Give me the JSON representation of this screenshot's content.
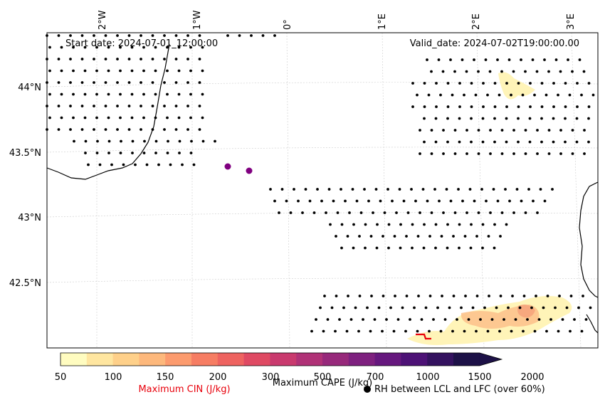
{
  "header": {
    "start_date": "Start date: 2024-07-01_12:00:00",
    "valid_date": "Valid_date: 2024-07-02T19:00:00.00"
  },
  "axes": {
    "lon_labels": [
      "2°W",
      "1°W",
      "0°",
      "1°E",
      "2°E",
      "3°E"
    ],
    "lat_labels": [
      "44°N",
      "43.5°N",
      "43°N",
      "42.5°N"
    ]
  },
  "colorbar": {
    "ticks": [
      "50",
      "100",
      "150",
      "200",
      "300",
      "500",
      "700",
      "1000",
      "1500",
      "2000"
    ],
    "colors": [
      "#fffcc0",
      "#ffe6a0",
      "#fed08a",
      "#fdb87c",
      "#fc9b6e",
      "#f67d63",
      "#ee6360",
      "#df4a63",
      "#c93a6e",
      "#b03277",
      "#97297b",
      "#7e217f",
      "#66187e",
      "#4d1276",
      "#34125f",
      "#1d1147"
    ],
    "cape_label": "Maximum CAPE (J/kg)",
    "cin_label": "Maximum CIN (J/kg)",
    "rh_label": "RH between LCL and LFC (over 60%)",
    "cin_color": "#e8000b",
    "rh_marker": "circle-dot"
  },
  "colors": {
    "cin_point": "#800080",
    "cape_low": "#fff3b0",
    "cape_mid": "#fdc08a",
    "cape_high": "#f6a27a"
  }
}
